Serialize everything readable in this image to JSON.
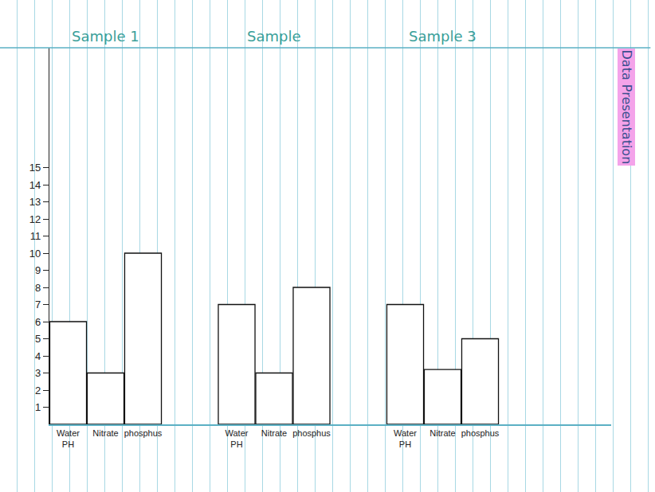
{
  "chart_data": {
    "type": "bar",
    "title": "Data Presentation",
    "categories": [
      "Water PH",
      "Nitrate",
      "phosphus"
    ],
    "series": [
      {
        "name": "Sample 1",
        "values": [
          6,
          3,
          10
        ]
      },
      {
        "name": "Sample",
        "values": [
          7,
          3,
          8
        ]
      },
      {
        "name": "Sample 3",
        "values": [
          7,
          3.2,
          5
        ]
      }
    ],
    "color": "#ffffff",
    "ylim": [
      0,
      22
    ],
    "yticks": [
      1,
      2,
      3,
      4,
      5,
      6,
      7,
      8,
      9,
      10,
      11,
      12,
      13,
      14,
      15
    ],
    "grid": false
  }
}
